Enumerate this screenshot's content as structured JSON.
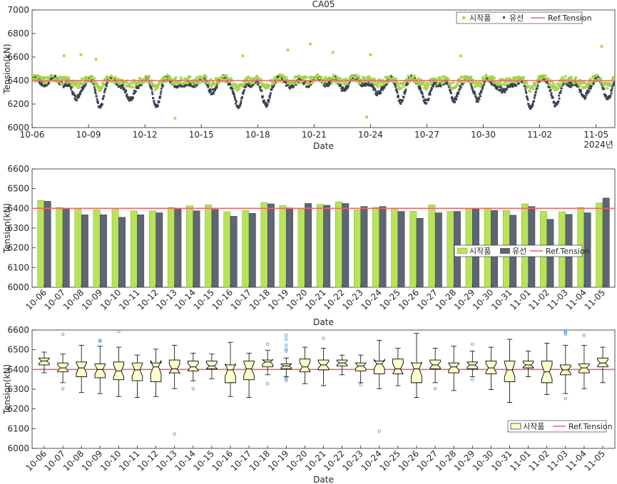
{
  "colors": {
    "prototype": "#b8e358",
    "prototype_edge": "#8bb530",
    "oiled": "#3a4352",
    "bar_oiled": "#5d6672",
    "ref": "#e36a6a",
    "outlier": "#3f8fd8",
    "box_fill": "#ffffcc",
    "axis": "#262626"
  },
  "chart_data": [
    {
      "type": "scatter",
      "title": "CA05",
      "xlabel": "Date",
      "ylabel": "Tension(kN)",
      "ylim": [
        6000,
        7000
      ],
      "yticks": [
        6000,
        6200,
        6400,
        6600,
        6800,
        7000
      ],
      "xlim": [
        "10-06",
        "11-06"
      ],
      "xticks": [
        "10-06",
        "10-09",
        "10-12",
        "10-15",
        "10-18",
        "10-21",
        "10-24",
        "10-27",
        "10-30",
        "11-02",
        "11-05"
      ],
      "year_label": "2024년",
      "ref_tension": 6400,
      "legend": [
        "시작품",
        "유선",
        "Ref.Tension"
      ],
      "legend_position": "top-right",
      "series": [
        {
          "name": "시작품",
          "marker": "circle",
          "mean": 6410,
          "amplitude": 55
        },
        {
          "name": "유선",
          "marker": "square",
          "mean": 6395,
          "amplitude": 90
        }
      ],
      "dips": [
        {
          "day": 2.3,
          "depth": 160
        },
        {
          "day": 3.6,
          "depth": 200
        },
        {
          "day": 5.2,
          "depth": 190
        },
        {
          "day": 6.6,
          "depth": 180
        },
        {
          "day": 8.1,
          "depth": 60
        },
        {
          "day": 9.5,
          "depth": 70
        },
        {
          "day": 11.0,
          "depth": 230
        },
        {
          "day": 12.4,
          "depth": 200
        },
        {
          "day": 14.0,
          "depth": 40
        },
        {
          "day": 16.5,
          "depth": 50
        },
        {
          "day": 18.3,
          "depth": 120
        },
        {
          "day": 19.6,
          "depth": 150
        },
        {
          "day": 21.0,
          "depth": 190
        },
        {
          "day": 22.4,
          "depth": 160
        },
        {
          "day": 23.7,
          "depth": 130
        },
        {
          "day": 25.1,
          "depth": 110
        },
        {
          "day": 26.5,
          "depth": 210
        },
        {
          "day": 27.9,
          "depth": 200
        },
        {
          "day": 29.3,
          "depth": 150
        },
        {
          "day": 30.6,
          "depth": 120
        }
      ],
      "outliers_prototype": [
        {
          "day": 1.7,
          "value": 6610
        },
        {
          "day": 2.6,
          "value": 6620
        },
        {
          "day": 3.4,
          "value": 6580
        },
        {
          "day": 7.6,
          "value": 6080
        },
        {
          "day": 11.2,
          "value": 6610
        },
        {
          "day": 13.6,
          "value": 6660
        },
        {
          "day": 14.8,
          "value": 6710
        },
        {
          "day": 16.0,
          "value": 6640
        },
        {
          "day": 17.8,
          "value": 6090
        },
        {
          "day": 18.0,
          "value": 6620
        },
        {
          "day": 22.8,
          "value": 6610
        },
        {
          "day": 30.3,
          "value": 6690
        }
      ]
    },
    {
      "type": "bar",
      "xlabel": "Date",
      "ylabel": "Tension(kN)",
      "ylim": [
        6000,
        6600
      ],
      "yticks": [
        6000,
        6100,
        6200,
        6300,
        6400,
        6500,
        6600
      ],
      "ref_tension": 6400,
      "legend": [
        "시작품",
        "유선",
        "Ref.Tension"
      ],
      "legend_position": "right",
      "categories": [
        "10-06",
        "10-07",
        "10-08",
        "10-09",
        "10-10",
        "10-11",
        "10-12",
        "10-13",
        "10-14",
        "10-15",
        "10-16",
        "10-17",
        "10-18",
        "10-19",
        "10-20",
        "10-21",
        "10-22",
        "10-23",
        "10-24",
        "10-25",
        "10-26",
        "10-27",
        "10-28",
        "10-29",
        "10-30",
        "10-31",
        "11-01",
        "11-02",
        "11-03",
        "11-04",
        "11-05"
      ],
      "series": [
        {
          "name": "시작품",
          "values": [
            6440,
            6405,
            6395,
            6393,
            6395,
            6388,
            6388,
            6405,
            6413,
            6418,
            6383,
            6390,
            6430,
            6415,
            6395,
            6420,
            6433,
            6393,
            6405,
            6400,
            6385,
            6418,
            6385,
            6395,
            6398,
            6390,
            6423,
            6385,
            6383,
            6405,
            6428
          ]
        },
        {
          "name": "유선",
          "values": [
            6436,
            6398,
            6368,
            6368,
            6355,
            6368,
            6378,
            6398,
            6388,
            6395,
            6360,
            6375,
            6423,
            6403,
            6425,
            6416,
            6425,
            6410,
            6410,
            6385,
            6350,
            6378,
            6385,
            6400,
            6390,
            6366,
            6410,
            6345,
            6370,
            6378,
            6453
          ]
        }
      ]
    },
    {
      "type": "boxplot",
      "xlabel": "Date",
      "ylabel": "Tension(kN)",
      "ylim": [
        6000,
        6600
      ],
      "yticks": [
        6000,
        6100,
        6200,
        6300,
        6400,
        6500,
        6600
      ],
      "ref_tension": 6400,
      "legend": [
        "시작품",
        "Ref.Tension"
      ],
      "legend_position": "bottom-right",
      "categories": [
        "10-06",
        "10-07",
        "10-08",
        "10-09",
        "10-10",
        "10-11",
        "10-12",
        "10-13",
        "10-14",
        "10-15",
        "10-16",
        "10-17",
        "10-18",
        "10-19",
        "10-20",
        "10-21",
        "10-22",
        "10-23",
        "10-24",
        "10-25",
        "10-26",
        "10-27",
        "10-28",
        "10-29",
        "10-30",
        "10-31",
        "11-01",
        "11-02",
        "11-03",
        "11-04",
        "11-05"
      ],
      "boxes": [
        {
          "min": 6383,
          "q1": 6423,
          "median": 6443,
          "q3": 6458,
          "max": 6488,
          "outliers": []
        },
        {
          "min": 6333,
          "q1": 6388,
          "median": 6408,
          "q3": 6433,
          "max": 6478,
          "outliers": [
            6578,
            6303
          ]
        },
        {
          "min": 6283,
          "q1": 6363,
          "median": 6408,
          "q3": 6438,
          "max": 6523,
          "outliers": []
        },
        {
          "min": 6278,
          "q1": 6358,
          "median": 6400,
          "q3": 6428,
          "max": 6518,
          "outliers": [
            6543,
            6548
          ]
        },
        {
          "min": 6263,
          "q1": 6348,
          "median": 6393,
          "q3": 6438,
          "max": 6513,
          "outliers": [
            6593
          ]
        },
        {
          "min": 6258,
          "q1": 6343,
          "median": 6398,
          "q3": 6433,
          "max": 6473,
          "outliers": []
        },
        {
          "min": 6263,
          "q1": 6338,
          "median": 6413,
          "q3": 6433,
          "max": 6503,
          "outliers": []
        },
        {
          "min": 6303,
          "q1": 6383,
          "median": 6403,
          "q3": 6448,
          "max": 6523,
          "outliers": [
            6073
          ]
        },
        {
          "min": 6343,
          "q1": 6393,
          "median": 6413,
          "q3": 6443,
          "max": 6483,
          "outliers": [
            6303
          ]
        },
        {
          "min": 6353,
          "q1": 6403,
          "median": 6418,
          "q3": 6443,
          "max": 6478,
          "outliers": []
        },
        {
          "min": 6263,
          "q1": 6333,
          "median": 6398,
          "q3": 6423,
          "max": 6538,
          "outliers": []
        },
        {
          "min": 6258,
          "q1": 6348,
          "median": 6403,
          "q3": 6443,
          "max": 6483,
          "outliers": []
        },
        {
          "min": 6373,
          "q1": 6413,
          "median": 6438,
          "q3": 6448,
          "max": 6498,
          "outliers": [
            6528,
            6328
          ]
        },
        {
          "min": 6363,
          "q1": 6403,
          "median": 6418,
          "q3": 6428,
          "max": 6458,
          "outliers": [
            6493,
            6503,
            6523,
            6553,
            6573,
            6343,
            6353,
            6363
          ]
        },
        {
          "min": 6328,
          "q1": 6388,
          "median": 6413,
          "q3": 6453,
          "max": 6513,
          "outliers": []
        },
        {
          "min": 6318,
          "q1": 6398,
          "median": 6423,
          "q3": 6448,
          "max": 6508,
          "outliers": [
            6558
          ]
        },
        {
          "min": 6373,
          "q1": 6418,
          "median": 6433,
          "q3": 6448,
          "max": 6473,
          "outliers": []
        },
        {
          "min": 6333,
          "q1": 6393,
          "median": 6418,
          "q3": 6433,
          "max": 6473,
          "outliers": [
            6323
          ]
        },
        {
          "min": 6303,
          "q1": 6378,
          "median": 6428,
          "q3": 6443,
          "max": 6548,
          "outliers": [
            6088
          ]
        },
        {
          "min": 6318,
          "q1": 6378,
          "median": 6403,
          "q3": 6453,
          "max": 6508,
          "outliers": []
        },
        {
          "min": 6258,
          "q1": 6333,
          "median": 6403,
          "q3": 6433,
          "max": 6583,
          "outliers": []
        },
        {
          "min": 6333,
          "q1": 6403,
          "median": 6423,
          "q3": 6448,
          "max": 6508,
          "outliers": [
            6303
          ]
        },
        {
          "min": 6293,
          "q1": 6383,
          "median": 6413,
          "q3": 6433,
          "max": 6518,
          "outliers": []
        },
        {
          "min": 6363,
          "q1": 6403,
          "median": 6423,
          "q3": 6438,
          "max": 6493,
          "outliers": [
            6528,
            6348
          ]
        },
        {
          "min": 6298,
          "q1": 6378,
          "median": 6408,
          "q3": 6443,
          "max": 6513,
          "outliers": []
        },
        {
          "min": 6233,
          "q1": 6338,
          "median": 6398,
          "q3": 6443,
          "max": 6553,
          "outliers": []
        },
        {
          "min": 6363,
          "q1": 6408,
          "median": 6423,
          "q3": 6443,
          "max": 6493,
          "outliers": []
        },
        {
          "min": 6273,
          "q1": 6333,
          "median": 6388,
          "q3": 6443,
          "max": 6533,
          "outliers": []
        },
        {
          "min": 6278,
          "q1": 6373,
          "median": 6398,
          "q3": 6423,
          "max": 6523,
          "outliers": [
            6593,
            6588,
            6578,
            6253
          ]
        },
        {
          "min": 6303,
          "q1": 6383,
          "median": 6408,
          "q3": 6428,
          "max": 6523,
          "outliers": [
            6573
          ]
        },
        {
          "min": 6333,
          "q1": 6413,
          "median": 6433,
          "q3": 6458,
          "max": 6513,
          "outliers": []
        }
      ]
    }
  ]
}
